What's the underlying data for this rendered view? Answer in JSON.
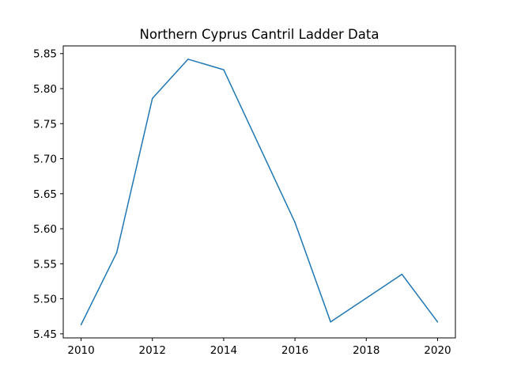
{
  "chart_data": {
    "type": "line",
    "title": "Northern Cyprus Cantril Ladder Data",
    "xlabel": "",
    "ylabel": "",
    "x": [
      2010,
      2011,
      2012,
      2013,
      2014,
      2015,
      2016,
      2017,
      2018,
      2019,
      2020
    ],
    "series": [
      {
        "values": [
          5.463,
          5.566,
          5.786,
          5.842,
          5.827,
          5.718,
          5.609,
          5.467,
          5.501,
          5.535,
          5.467
        ],
        "color": "#1f77b4"
      }
    ],
    "xlim": [
      2009.5,
      2020.5
    ],
    "ylim": [
      5.4442,
      5.861
    ],
    "xticks": [
      2010,
      2012,
      2014,
      2016,
      2018,
      2020
    ],
    "xtick_labels": [
      "2010",
      "2012",
      "2014",
      "2016",
      "2018",
      "2020"
    ],
    "yticks": [
      5.45,
      5.5,
      5.55,
      5.6,
      5.65,
      5.7,
      5.75,
      5.8,
      5.85
    ],
    "ytick_labels": [
      "5.45",
      "5.50",
      "5.55",
      "5.60",
      "5.65",
      "5.70",
      "5.75",
      "5.80",
      "5.85"
    ],
    "grid": false,
    "legend": "none"
  }
}
